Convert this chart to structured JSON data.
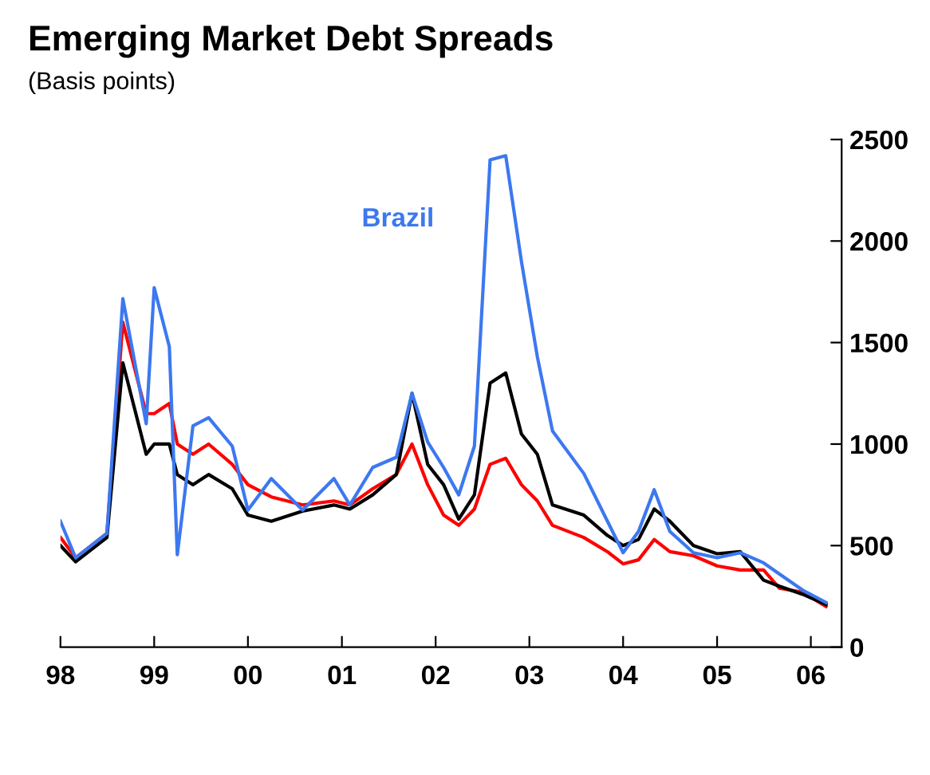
{
  "chart_data": {
    "type": "line",
    "title": "Emerging Market Debt Spreads",
    "subtitle": "(Basis points)",
    "x": [
      "1998-01",
      "1998-03",
      "1998-07",
      "1998-09",
      "1998-12",
      "1999-01",
      "1999-03",
      "1999-04",
      "1999-06",
      "1999-08",
      "1999-11",
      "2000-01",
      "2000-04",
      "2000-08",
      "2000-12",
      "2001-02",
      "2001-05",
      "2001-08",
      "2001-10",
      "2001-12",
      "2002-02",
      "2002-04",
      "2002-06",
      "2002-08",
      "2002-10",
      "2002-12",
      "2003-02",
      "2003-04",
      "2003-08",
      "2003-11",
      "2004-01",
      "2004-03",
      "2004-05",
      "2004-07",
      "2004-10",
      "2005-01",
      "2005-04",
      "2005-07",
      "2005-09",
      "2005-12",
      "2006-03"
    ],
    "series": [
      {
        "color": "#ff0000",
        "values": [
          540,
          440,
          560,
          1600,
          1150,
          1150,
          1200,
          1000,
          950,
          1000,
          900,
          800,
          740,
          700,
          720,
          700,
          780,
          850,
          1000,
          800,
          650,
          600,
          680,
          900,
          930,
          800,
          720,
          600,
          540,
          470,
          410,
          430,
          530,
          470,
          450,
          400,
          380,
          380,
          290,
          270,
          200
        ]
      },
      {
        "color": "#000000",
        "values": [
          500,
          420,
          540,
          1400,
          950,
          1000,
          1000,
          850,
          800,
          850,
          780,
          650,
          620,
          670,
          700,
          680,
          750,
          850,
          1250,
          900,
          800,
          630,
          750,
          1300,
          1350,
          1050,
          950,
          700,
          650,
          550,
          500,
          530,
          680,
          620,
          500,
          460,
          470,
          330,
          300,
          260,
          210
        ]
      },
      {
        "name": "Brazil",
        "color": "#3c78f0",
        "values": [
          620,
          440,
          560,
          1716,
          1100,
          1770,
          1480,
          455,
          1090,
          1130,
          990,
          675,
          830,
          675,
          830,
          700,
          885,
          935,
          1250,
          1010,
          885,
          750,
          990,
          2400,
          2420,
          1900,
          1430,
          1065,
          855,
          620,
          465,
          570,
          775,
          570,
          465,
          440,
          465,
          415,
          360,
          280,
          220
        ]
      }
    ],
    "xlim": [
      "1998-01-01",
      "2006-05-01"
    ],
    "xticks": [
      {
        "value": "1998-01-01",
        "label": "98"
      },
      {
        "value": "1999-01-01",
        "label": "99"
      },
      {
        "value": "2000-01-01",
        "label": "00"
      },
      {
        "value": "2001-01-01",
        "label": "01"
      },
      {
        "value": "2002-01-01",
        "label": "02"
      },
      {
        "value": "2003-01-01",
        "label": "03"
      },
      {
        "value": "2004-01-01",
        "label": "04"
      },
      {
        "value": "2005-01-01",
        "label": "05"
      },
      {
        "value": "2006-01-01",
        "label": "06"
      }
    ],
    "ylim": [
      0,
      2500
    ],
    "yticks": [
      0,
      500,
      1000,
      1500,
      2000,
      2500
    ],
    "grid": false,
    "legend": false,
    "line_style": "solid",
    "marker": "none"
  }
}
